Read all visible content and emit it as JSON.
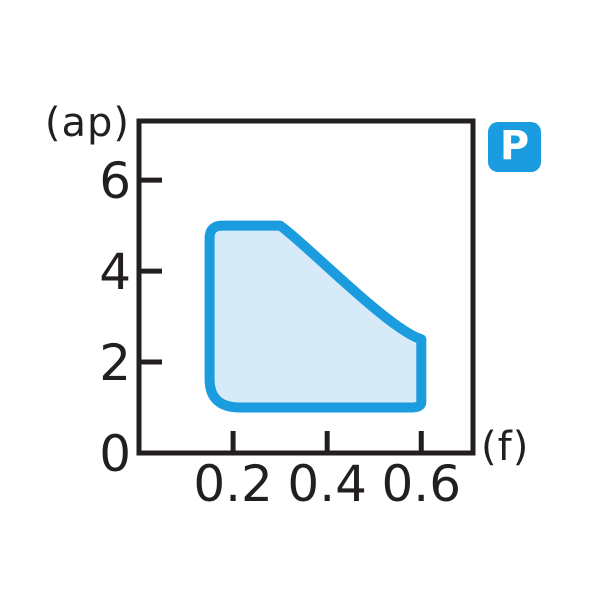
{
  "chart_data": {
    "type": "area",
    "title": "",
    "xlabel": "(f)",
    "ylabel": "(ap)",
    "x_ticks": [
      "0.2",
      "0.4",
      "0.6"
    ],
    "x_tick_values": [
      0.2,
      0.4,
      0.6
    ],
    "y_ticks": [
      "0",
      "2",
      "4",
      "6"
    ],
    "y_tick_values": [
      0,
      2,
      4,
      6
    ],
    "xlim": [
      0,
      0.71
    ],
    "ylim": [
      0,
      7.3
    ],
    "grid": false,
    "legend": "none",
    "badge_label": "P",
    "region": {
      "name": "application-range",
      "description_vertices_f_ap": [
        [
          0.15,
          5
        ],
        [
          0.3,
          5
        ],
        [
          0.6,
          2.5
        ],
        [
          0.6,
          1
        ],
        [
          0.15,
          1
        ]
      ],
      "path_commands": [
        [
          "M",
          0.15,
          4.72
        ],
        [
          "Q",
          0.15,
          5,
          0.177,
          5
        ],
        [
          "L",
          0.3,
          5
        ],
        [
          "C",
          0.35,
          4.65,
          0.53,
          2.72,
          0.6,
          2.5
        ],
        [
          "L",
          0.6,
          1.12
        ],
        [
          "Q",
          0.6,
          1,
          0.578,
          1
        ],
        [
          "L",
          0.215,
          1
        ],
        [
          "Q",
          0.15,
          1,
          0.15,
          1.62
        ],
        [
          "Z"
        ]
      ]
    },
    "colors": {
      "axis": "#231f20",
      "region_fill": "#d6eaf8",
      "region_stroke": "#1a9cdf",
      "badge_blue": "#1b9ce1",
      "badge_text": "#ffffff"
    }
  }
}
